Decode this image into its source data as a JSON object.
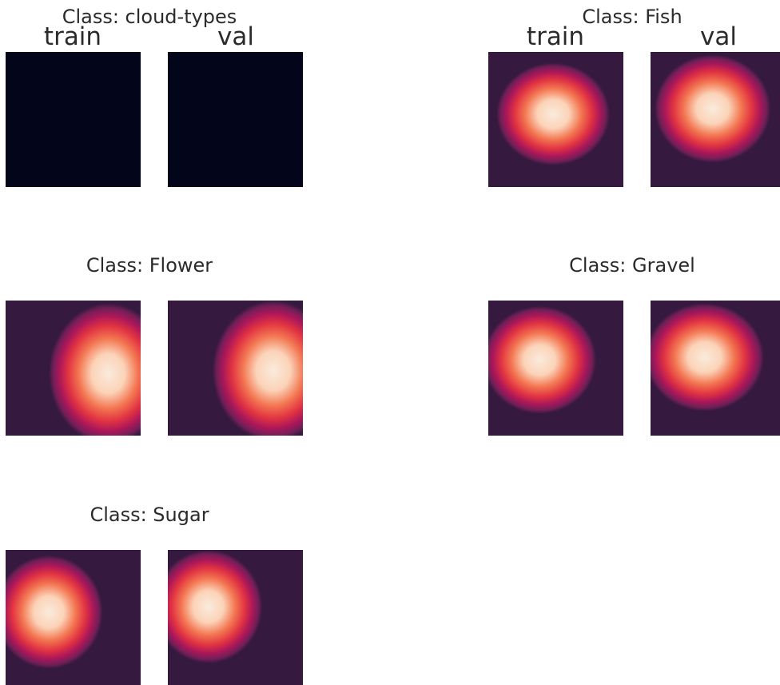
{
  "chart_data": [
    {
      "type": "heatmap",
      "title": "Class: cloud-types",
      "column_labels": [
        "train",
        "val"
      ],
      "panels": [
        {
          "label": "train",
          "empty": true
        },
        {
          "label": "val",
          "empty": true
        }
      ]
    },
    {
      "type": "heatmap",
      "title": "Class: Fish",
      "panels": [
        {
          "label": "train",
          "hotspot_center": [
            0.48,
            0.46
          ],
          "spread": [
            0.42,
            0.38
          ]
        },
        {
          "label": "val",
          "hotspot_center": [
            0.46,
            0.42
          ],
          "spread": [
            0.43,
            0.4
          ]
        }
      ]
    },
    {
      "type": "heatmap",
      "title": "Class: Flower",
      "panels": [
        {
          "label": "train",
          "hotspot_center": [
            0.76,
            0.54
          ],
          "spread": [
            0.44,
            0.52
          ]
        },
        {
          "label": "val",
          "hotspot_center": [
            0.78,
            0.52
          ],
          "spread": [
            0.45,
            0.52
          ]
        }
      ]
    },
    {
      "type": "heatmap",
      "title": "Class: Gravel",
      "panels": [
        {
          "label": "train",
          "hotspot_center": [
            0.38,
            0.44
          ],
          "spread": [
            0.42,
            0.4
          ]
        },
        {
          "label": "val",
          "hotspot_center": [
            0.4,
            0.42
          ],
          "spread": [
            0.44,
            0.4
          ]
        }
      ]
    },
    {
      "type": "heatmap",
      "title": "Class: Sugar",
      "panels": [
        {
          "label": "train",
          "hotspot_center": [
            0.32,
            0.46
          ],
          "spread": [
            0.4,
            0.42
          ]
        },
        {
          "label": "val",
          "hotspot_center": [
            0.3,
            0.42
          ],
          "spread": [
            0.4,
            0.42
          ]
        }
      ]
    }
  ],
  "colors": {
    "background": "#ffffff",
    "empty_map": "#03051a",
    "colormap_low": "#35193e",
    "colormap_mid_low": "#701f57",
    "colormap_mid": "#ad1759",
    "colormap_mid_high": "#e13342",
    "colormap_high": "#f37651",
    "colormap_top": "#faebdd"
  }
}
